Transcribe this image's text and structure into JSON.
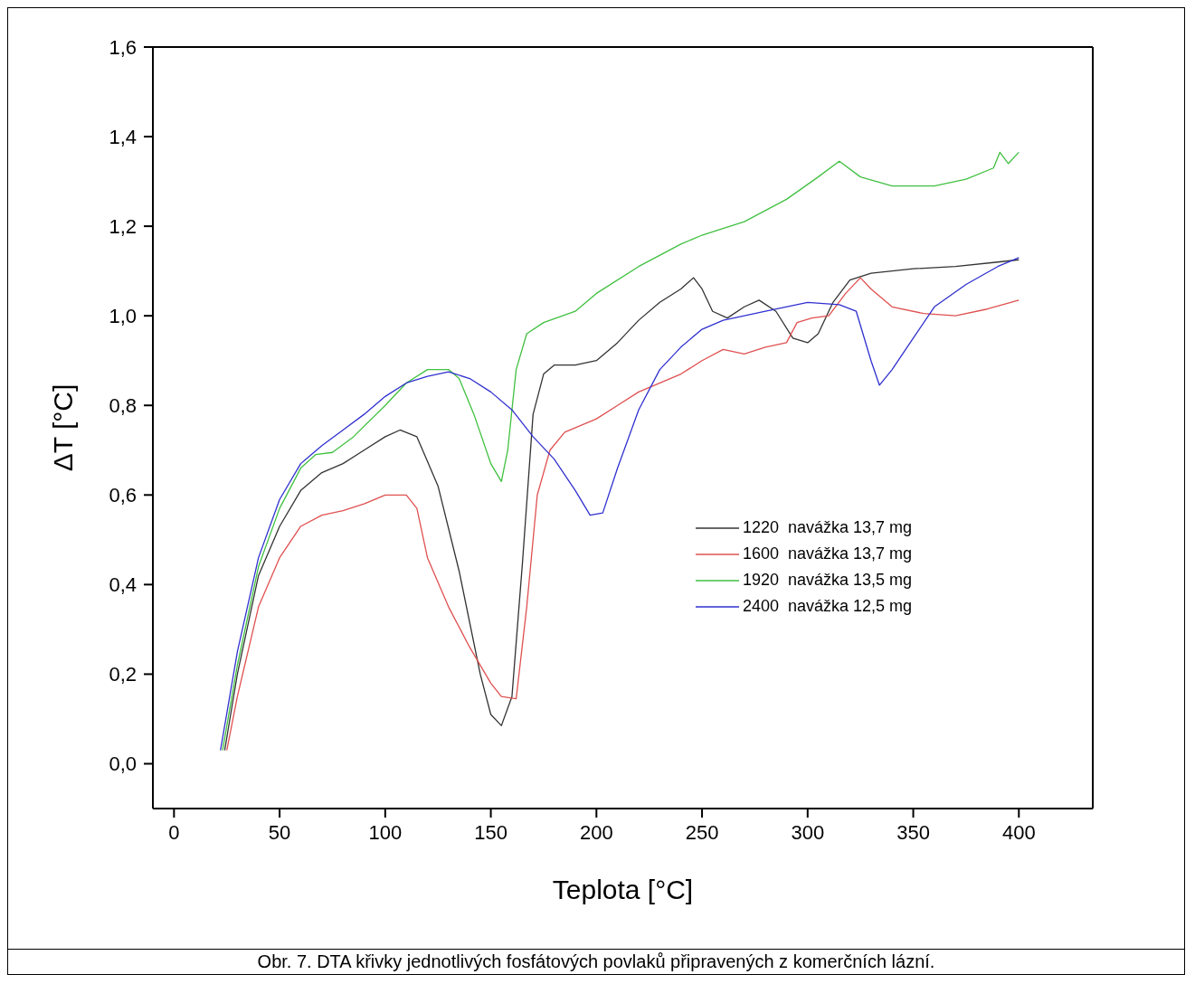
{
  "chart_data": {
    "type": "line",
    "xlabel": "Teplota [°C]",
    "ylabel": "ΔT [°C]",
    "annotations": [
      "Obr. 7. DTA křivky jednotlivých fosfátových povlaků připravených z komerčních lázní."
    ],
    "xlim": [
      -10,
      435
    ],
    "xticks": [
      0,
      50,
      100,
      150,
      200,
      250,
      300,
      350,
      400
    ],
    "ylim": [
      -0.1,
      1.6
    ],
    "yticks": [
      {
        "value": 0,
        "label": "0,0"
      },
      {
        "value": 0.2,
        "label": "0,2"
      },
      {
        "value": 0.4,
        "label": "0,4"
      },
      {
        "value": 0.6,
        "label": "0,6"
      },
      {
        "value": 0.8,
        "label": "0,8"
      },
      {
        "value": 1,
        "label": "1,0"
      },
      {
        "value": 1.2,
        "label": "1,2"
      },
      {
        "value": 1.4,
        "label": "1,4"
      },
      {
        "value": 1.6,
        "label": "1,6"
      }
    ],
    "grid": false,
    "legend": "right",
    "marker": "none",
    "line_style": "solid",
    "series": [
      {
        "name": "1220  navážka 13,7 mg",
        "color": "#333333",
        "x": [
          24,
          30,
          40,
          50,
          60,
          70,
          80,
          90,
          100,
          107,
          115,
          125,
          135,
          145,
          150,
          155,
          160,
          165,
          170,
          175,
          180,
          190,
          200,
          210,
          220,
          230,
          240,
          246,
          250,
          255,
          262,
          270,
          277,
          285,
          293,
          300,
          305,
          312,
          320,
          330,
          350,
          370,
          390,
          400
        ],
        "values": [
          0.03,
          0.2,
          0.42,
          0.53,
          0.61,
          0.65,
          0.67,
          0.7,
          0.73,
          0.745,
          0.73,
          0.62,
          0.43,
          0.2,
          0.11,
          0.085,
          0.15,
          0.45,
          0.78,
          0.87,
          0.89,
          0.89,
          0.9,
          0.94,
          0.99,
          1.03,
          1.06,
          1.085,
          1.06,
          1.01,
          0.995,
          1.02,
          1.035,
          1.01,
          0.95,
          0.94,
          0.96,
          1.03,
          1.08,
          1.095,
          1.105,
          1.11,
          1.12,
          1.125
        ]
      },
      {
        "name": "1600  navážka 13,7 mg",
        "color": "#e05050",
        "x": [
          25,
          30,
          40,
          50,
          60,
          70,
          80,
          90,
          100,
          110,
          115,
          120,
          130,
          140,
          150,
          155,
          162,
          167,
          172,
          178,
          185,
          200,
          210,
          220,
          240,
          250,
          260,
          270,
          280,
          290,
          295,
          302,
          310,
          318,
          325,
          330,
          340,
          355,
          370,
          385,
          400
        ],
        "values": [
          0.03,
          0.15,
          0.35,
          0.46,
          0.53,
          0.555,
          0.565,
          0.58,
          0.6,
          0.6,
          0.57,
          0.46,
          0.35,
          0.26,
          0.18,
          0.15,
          0.145,
          0.35,
          0.6,
          0.7,
          0.74,
          0.77,
          0.8,
          0.83,
          0.87,
          0.9,
          0.925,
          0.915,
          0.93,
          0.94,
          0.985,
          0.995,
          1.0,
          1.05,
          1.085,
          1.06,
          1.02,
          1.005,
          1.0,
          1.015,
          1.035
        ]
      },
      {
        "name": "1920  navážka 13,5 mg",
        "color": "#40c040",
        "x": [
          23,
          30,
          40,
          50,
          60,
          67,
          75,
          85,
          100,
          110,
          120,
          130,
          135,
          142,
          150,
          155,
          158,
          162,
          167,
          175,
          190,
          200,
          220,
          240,
          250,
          270,
          290,
          305,
          315,
          325,
          340,
          360,
          375,
          388,
          391,
          395,
          400
        ],
        "values": [
          0.03,
          0.22,
          0.44,
          0.57,
          0.66,
          0.69,
          0.695,
          0.73,
          0.8,
          0.85,
          0.88,
          0.88,
          0.86,
          0.78,
          0.67,
          0.63,
          0.7,
          0.88,
          0.96,
          0.985,
          1.01,
          1.05,
          1.11,
          1.16,
          1.18,
          1.21,
          1.26,
          1.31,
          1.345,
          1.31,
          1.29,
          1.29,
          1.305,
          1.33,
          1.365,
          1.34,
          1.365
        ]
      },
      {
        "name": "2400  navážka 12,5 mg",
        "color": "#3030d0",
        "x": [
          22,
          30,
          40,
          50,
          60,
          70,
          80,
          90,
          100,
          110,
          120,
          130,
          140,
          150,
          160,
          170,
          180,
          190,
          197,
          203,
          210,
          220,
          230,
          240,
          250,
          260,
          280,
          300,
          315,
          323,
          330,
          334,
          340,
          350,
          360,
          375,
          390,
          400
        ],
        "values": [
          0.03,
          0.25,
          0.46,
          0.59,
          0.67,
          0.71,
          0.745,
          0.78,
          0.82,
          0.85,
          0.865,
          0.875,
          0.86,
          0.83,
          0.79,
          0.73,
          0.68,
          0.61,
          0.555,
          0.56,
          0.66,
          0.79,
          0.88,
          0.93,
          0.97,
          0.99,
          1.01,
          1.03,
          1.025,
          1.01,
          0.9,
          0.845,
          0.88,
          0.95,
          1.02,
          1.07,
          1.11,
          1.13
        ]
      }
    ]
  }
}
